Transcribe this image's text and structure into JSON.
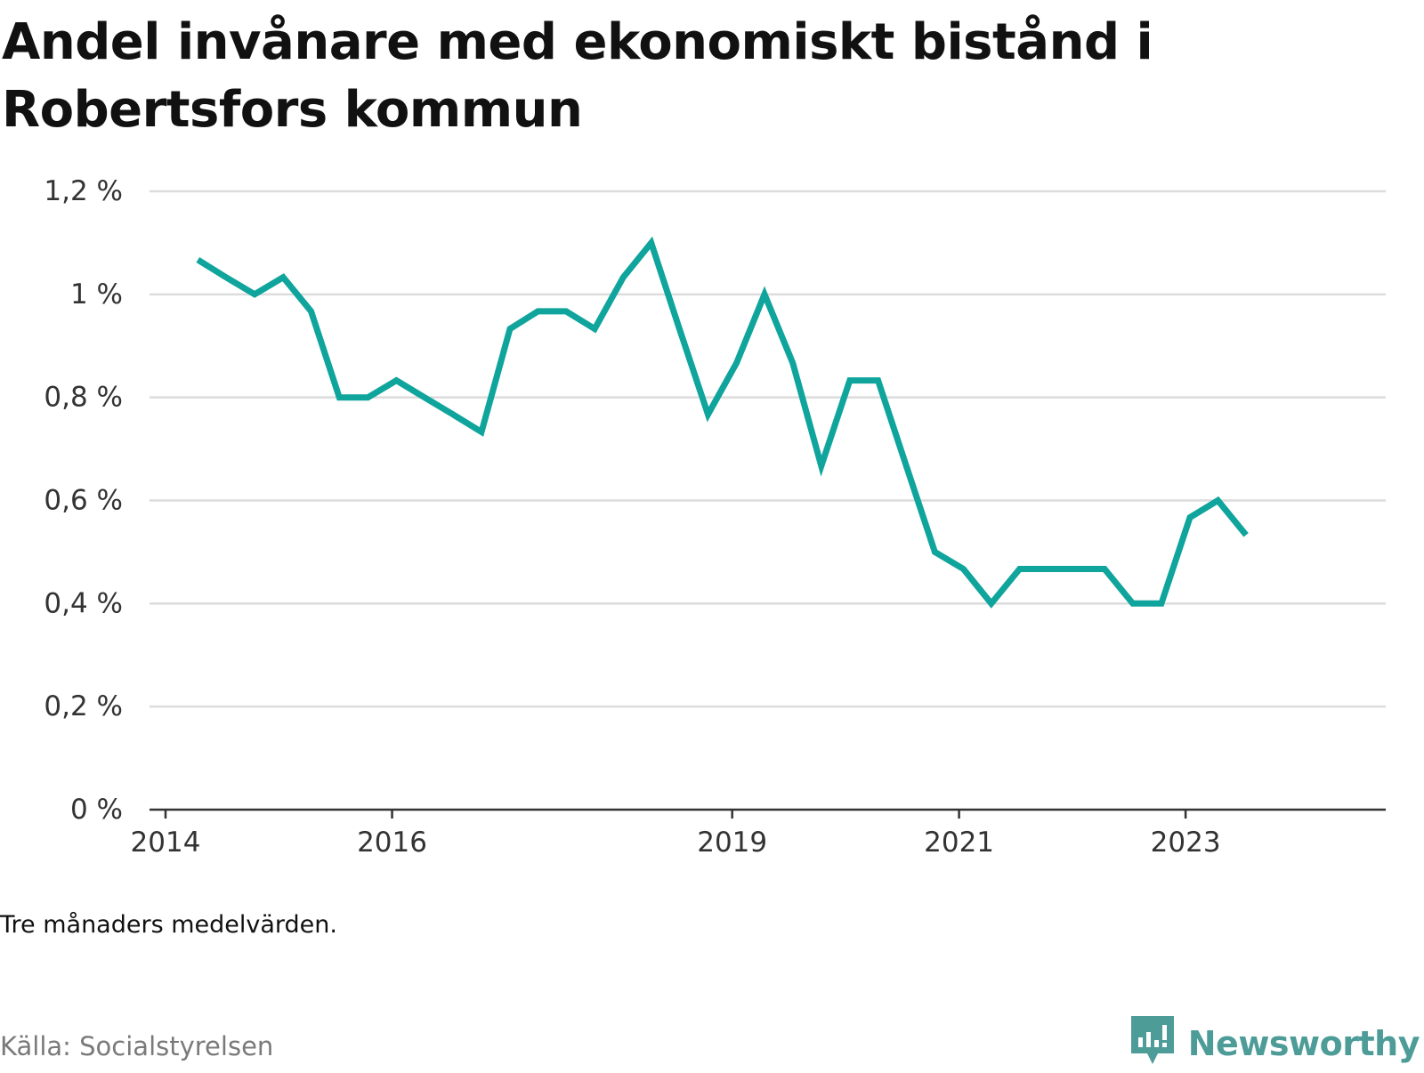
{
  "title": "Andel invånare med ekonomiskt bistånd i Robertsfors kommun",
  "note": "Tre månaders medelvärden.",
  "source": "Källa: Socialstyrelsen",
  "brand": {
    "name": "Newsworthy",
    "icon": "newsworthy-logo-icon",
    "color": "#4d9c98"
  },
  "chart_data": {
    "type": "line",
    "line_color": "#0fa49c",
    "grid": true,
    "ylim": [
      0,
      1.2
    ],
    "yticks": [
      {
        "value": 0,
        "label": "0 %"
      },
      {
        "value": 0.2,
        "label": "0,2 %"
      },
      {
        "value": 0.4,
        "label": "0,4 %"
      },
      {
        "value": 0.6,
        "label": "0,6 %"
      },
      {
        "value": 0.8,
        "label": "0,8 %"
      },
      {
        "value": 1.0,
        "label": "1 %"
      },
      {
        "value": 1.2,
        "label": "1,2 %"
      }
    ],
    "xlim": [
      "2014-01-01",
      "2024-04-15"
    ],
    "xticks": [
      {
        "value": "2014-01-01",
        "label": "2014"
      },
      {
        "value": "2016-01-01",
        "label": "2016"
      },
      {
        "value": "2019-01-01",
        "label": "2019"
      },
      {
        "value": "2021-01-01",
        "label": "2021"
      },
      {
        "value": "2023-01-01",
        "label": "2023"
      }
    ],
    "series": [
      {
        "points": [
          {
            "x": "2014-04-15",
            "y": 1.067
          },
          {
            "x": "2014-07-15",
            "y": 1.033
          },
          {
            "x": "2014-10-15",
            "y": 1.0
          },
          {
            "x": "2015-01-15",
            "y": 1.033
          },
          {
            "x": "2015-04-15",
            "y": 0.967
          },
          {
            "x": "2015-07-15",
            "y": 0.8
          },
          {
            "x": "2015-10-15",
            "y": 0.8
          },
          {
            "x": "2016-01-15",
            "y": 0.833
          },
          {
            "x": "2016-04-15",
            "y": 0.8
          },
          {
            "x": "2016-07-15",
            "y": 0.767
          },
          {
            "x": "2016-10-15",
            "y": 0.733
          },
          {
            "x": "2017-01-15",
            "y": 0.933
          },
          {
            "x": "2017-04-15",
            "y": 0.967
          },
          {
            "x": "2017-07-15",
            "y": 0.967
          },
          {
            "x": "2017-10-15",
            "y": 0.933
          },
          {
            "x": "2018-01-15",
            "y": 1.033
          },
          {
            "x": "2018-04-15",
            "y": 1.1
          },
          {
            "x": "2018-07-15",
            "y": 0.933
          },
          {
            "x": "2018-10-15",
            "y": 0.767
          },
          {
            "x": "2019-01-15",
            "y": 0.867
          },
          {
            "x": "2019-04-15",
            "y": 1.0
          },
          {
            "x": "2019-07-15",
            "y": 0.867
          },
          {
            "x": "2019-10-15",
            "y": 0.667
          },
          {
            "x": "2020-01-15",
            "y": 0.833
          },
          {
            "x": "2020-04-15",
            "y": 0.833
          },
          {
            "x": "2020-07-15",
            "y": 0.667
          },
          {
            "x": "2020-10-15",
            "y": 0.5
          },
          {
            "x": "2021-01-15",
            "y": 0.467
          },
          {
            "x": "2021-04-15",
            "y": 0.4
          },
          {
            "x": "2021-07-15",
            "y": 0.467
          },
          {
            "x": "2021-10-15",
            "y": 0.467
          },
          {
            "x": "2022-01-15",
            "y": 0.467
          },
          {
            "x": "2022-04-15",
            "y": 0.467
          },
          {
            "x": "2022-07-15",
            "y": 0.4
          },
          {
            "x": "2022-10-15",
            "y": 0.4
          },
          {
            "x": "2023-01-15",
            "y": 0.567
          },
          {
            "x": "2023-04-15",
            "y": 0.6
          },
          {
            "x": "2023-07-15",
            "y": 0.533
          }
        ]
      }
    ]
  }
}
